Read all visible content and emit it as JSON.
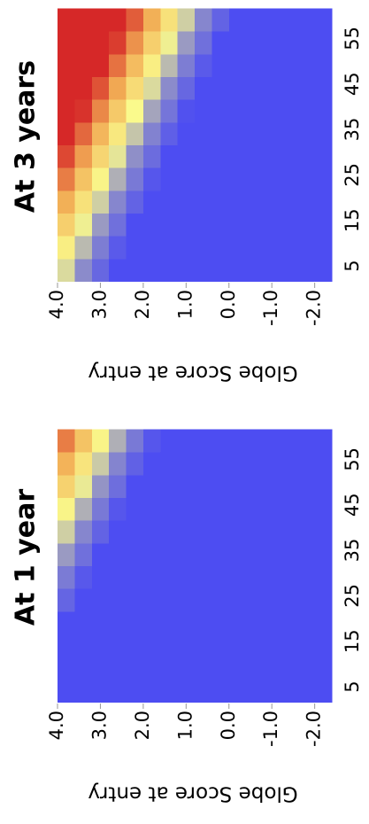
{
  "chart_data": [
    {
      "type": "heatmap",
      "title": "At 1 year",
      "ylabel": "Globe Score at entry",
      "xlim": [
        1.5,
        61.5
      ],
      "ylim": [
        -2.4,
        4.0
      ],
      "xticks": [
        5,
        15,
        25,
        35,
        45,
        55
      ],
      "yticks": [
        {
          "value": 4,
          "label": "4.0"
        },
        {
          "value": 3,
          "label": "3.0"
        },
        {
          "value": 2,
          "label": "2.0"
        },
        {
          "value": 1,
          "label": "1.0"
        },
        {
          "value": 0,
          "label": "0.0"
        },
        {
          "value": -1,
          "label": "-1.0"
        },
        {
          "value": -2,
          "label": "-2.0"
        }
      ],
      "xbins": [
        1.5,
        6.5,
        11.5,
        16.5,
        21.5,
        26.5,
        31.5,
        36.5,
        41.5,
        46.5,
        51.5,
        56.5,
        61.5
      ],
      "ybins": [
        4.0,
        3.6,
        3.2,
        2.8,
        2.4,
        2.0,
        1.6,
        1.2,
        0.8,
        0.4,
        0.0,
        -0.4,
        -0.8,
        -1.2,
        -1.6,
        -2.0,
        -2.4
      ],
      "colorscale": [
        [
          0,
          "#4d4df2"
        ],
        [
          0.3,
          "#8f8fc8"
        ],
        [
          0.5,
          "#fafa8c"
        ],
        [
          0.75,
          "#f2ad55"
        ],
        [
          1,
          "#d62828"
        ]
      ],
      "z": [
        [
          0,
          0,
          0,
          0,
          0.11,
          0.21,
          0.32,
          0.42,
          0.52,
          0.63,
          0.73,
          0.84
        ],
        [
          0,
          0,
          0,
          0,
          0,
          0.05,
          0.16,
          0.26,
          0.36,
          0.47,
          0.57,
          0.68
        ],
        [
          0,
          0,
          0,
          0,
          0,
          0,
          0,
          0.1,
          0.2,
          0.31,
          0.41,
          0.52
        ],
        [
          0,
          0,
          0,
          0,
          0,
          0,
          0,
          0,
          0.04,
          0.15,
          0.25,
          0.36
        ],
        [
          0,
          0,
          0,
          0,
          0,
          0,
          0,
          0,
          0,
          0,
          0.09,
          0.2
        ],
        [
          0,
          0,
          0,
          0,
          0,
          0,
          0,
          0,
          0,
          0,
          0,
          0.04
        ],
        [
          0,
          0,
          0,
          0,
          0,
          0,
          0,
          0,
          0,
          0,
          0,
          0
        ],
        [
          0,
          0,
          0,
          0,
          0,
          0,
          0,
          0,
          0,
          0,
          0,
          0
        ],
        [
          0,
          0,
          0,
          0,
          0,
          0,
          0,
          0,
          0,
          0,
          0,
          0
        ],
        [
          0,
          0,
          0,
          0,
          0,
          0,
          0,
          0,
          0,
          0,
          0,
          0
        ],
        [
          0,
          0,
          0,
          0,
          0,
          0,
          0,
          0,
          0,
          0,
          0,
          0
        ],
        [
          0,
          0,
          0,
          0,
          0,
          0,
          0,
          0,
          0,
          0,
          0,
          0
        ],
        [
          0,
          0,
          0,
          0,
          0,
          0,
          0,
          0,
          0,
          0,
          0,
          0
        ],
        [
          0,
          0,
          0,
          0,
          0,
          0,
          0,
          0,
          0,
          0,
          0,
          0
        ],
        [
          0,
          0,
          0,
          0,
          0,
          0,
          0,
          0,
          0,
          0,
          0,
          0
        ],
        [
          0,
          0,
          0,
          0,
          0,
          0,
          0,
          0,
          0,
          0,
          0,
          0
        ]
      ]
    },
    {
      "type": "heatmap",
      "title": "At 3 years",
      "ylabel": "Globe Score at entry",
      "xlim": [
        1.5,
        61.5
      ],
      "ylim": [
        -2.4,
        4.0
      ],
      "xticks": [
        5,
        15,
        25,
        35,
        45,
        55
      ],
      "yticks": [
        {
          "value": 4,
          "label": "4.0"
        },
        {
          "value": 3,
          "label": "3.0"
        },
        {
          "value": 2,
          "label": "2.0"
        },
        {
          "value": 1,
          "label": "1.0"
        },
        {
          "value": 0,
          "label": "0.0"
        },
        {
          "value": -1,
          "label": "-1.0"
        },
        {
          "value": -2,
          "label": "-2.0"
        }
      ],
      "xbins": [
        1.5,
        6.5,
        11.5,
        16.5,
        21.5,
        26.5,
        31.5,
        36.5,
        41.5,
        46.5,
        51.5,
        56.5,
        61.5
      ],
      "ybins": [
        4.0,
        3.6,
        3.2,
        2.8,
        2.4,
        2.0,
        1.6,
        1.2,
        0.8,
        0.4,
        0.0,
        -0.4,
        -0.8,
        -1.2,
        -1.6,
        -2.0,
        -2.4
      ],
      "colorscale": [
        [
          0,
          "#4d4df2"
        ],
        [
          0.3,
          "#8f8fc8"
        ],
        [
          0.5,
          "#fafa8c"
        ],
        [
          0.75,
          "#f2ad55"
        ],
        [
          1,
          "#d62828"
        ]
      ],
      "z": [
        [
          0.44,
          0.54,
          0.64,
          0.74,
          0.84,
          0.94,
          1,
          1,
          1,
          1,
          1,
          1
        ],
        [
          0.28,
          0.38,
          0.48,
          0.58,
          0.68,
          0.78,
          0.88,
          0.98,
          1,
          1,
          1,
          1
        ],
        [
          0.12,
          0.22,
          0.32,
          0.42,
          0.52,
          0.62,
          0.72,
          0.82,
          0.92,
          1,
          1,
          1
        ],
        [
          0,
          0.06,
          0.16,
          0.26,
          0.36,
          0.46,
          0.56,
          0.66,
          0.76,
          0.86,
          0.96,
          1
        ],
        [
          0,
          0,
          0,
          0.1,
          0.2,
          0.3,
          0.4,
          0.5,
          0.6,
          0.7,
          0.8,
          0.9
        ],
        [
          0,
          0,
          0,
          0,
          0.04,
          0.14,
          0.24,
          0.34,
          0.44,
          0.54,
          0.64,
          0.74
        ],
        [
          0,
          0,
          0,
          0,
          0,
          0,
          0.08,
          0.18,
          0.28,
          0.38,
          0.48,
          0.58
        ],
        [
          0,
          0,
          0,
          0,
          0,
          0,
          0,
          0.02,
          0.12,
          0.22,
          0.32,
          0.42
        ],
        [
          0,
          0,
          0,
          0,
          0,
          0,
          0,
          0,
          0,
          0.06,
          0.16,
          0.26
        ],
        [
          0,
          0,
          0,
          0,
          0,
          0,
          0,
          0,
          0,
          0,
          0,
          0.1
        ],
        [
          0,
          0,
          0,
          0,
          0,
          0,
          0,
          0,
          0,
          0,
          0,
          0
        ],
        [
          0,
          0,
          0,
          0,
          0,
          0,
          0,
          0,
          0,
          0,
          0,
          0
        ],
        [
          0,
          0,
          0,
          0,
          0,
          0,
          0,
          0,
          0,
          0,
          0,
          0
        ],
        [
          0,
          0,
          0,
          0,
          0,
          0,
          0,
          0,
          0,
          0,
          0,
          0
        ],
        [
          0,
          0,
          0,
          0,
          0,
          0,
          0,
          0,
          0,
          0,
          0,
          0
        ],
        [
          0,
          0,
          0,
          0,
          0,
          0,
          0,
          0,
          0,
          0,
          0,
          0
        ]
      ]
    }
  ]
}
